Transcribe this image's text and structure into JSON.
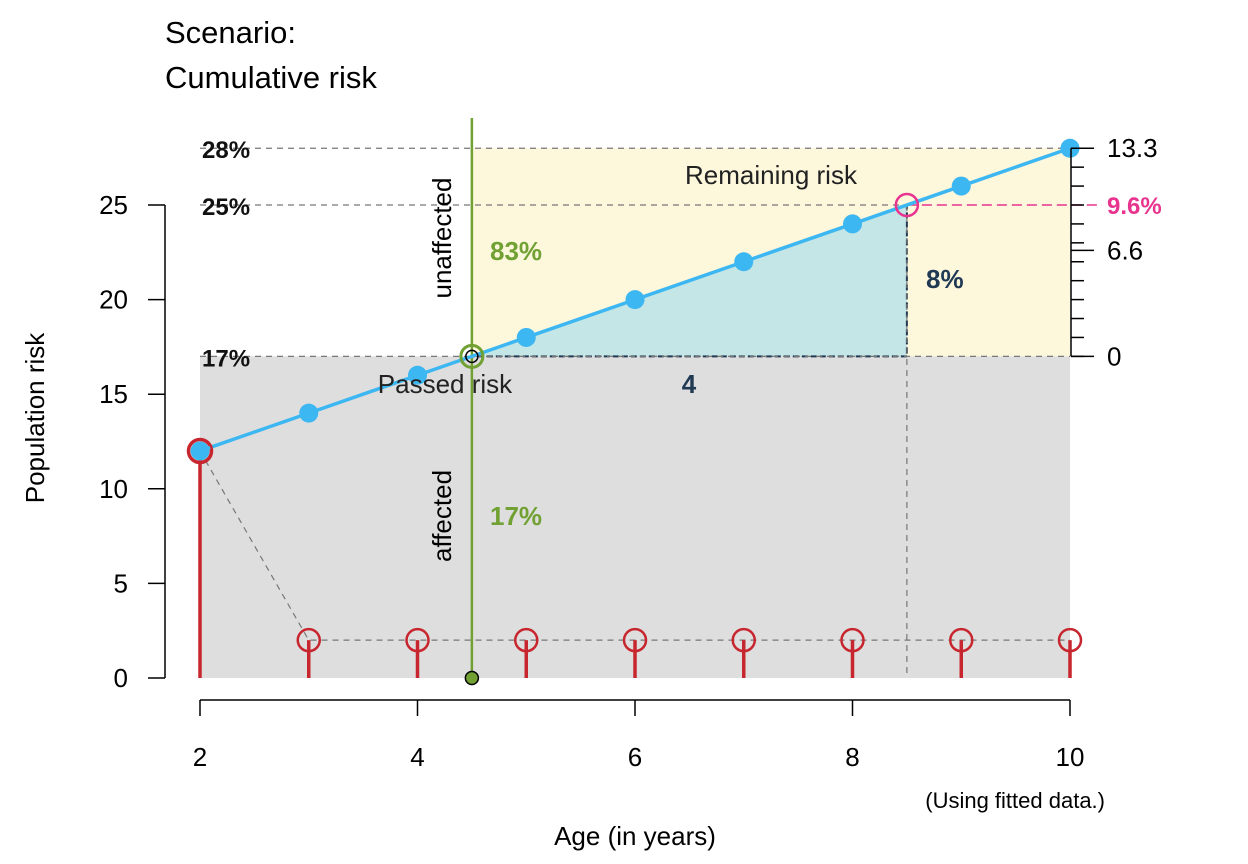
{
  "title_lines": [
    "Scenario:",
    "Cumulative risk"
  ],
  "chart_data": {
    "type": "line",
    "xlabel": "Age (in years)",
    "ylabel": "Population risk",
    "xlim": [
      2,
      10
    ],
    "ylim": [
      0,
      25
    ],
    "x_ticks": [
      2,
      4,
      6,
      8,
      10
    ],
    "y_ticks": [
      0,
      5,
      10,
      15,
      20,
      25
    ],
    "note": "(Using fitted data.)",
    "series": [
      {
        "x": [
          2,
          3,
          4,
          5,
          6,
          7,
          8,
          9,
          10
        ],
        "values": [
          12,
          14,
          16,
          18,
          20,
          22,
          24,
          26,
          28
        ]
      }
    ],
    "annual_risk": [
      12,
      2,
      2,
      2,
      2,
      2,
      2,
      2,
      2
    ],
    "current_age": 4.5,
    "current_risk": 17,
    "target_age": 8.5,
    "target_risk": 25,
    "max_risk": 28,
    "left_pct_labels": [
      {
        "value": 28,
        "label": "28%"
      },
      {
        "value": 25,
        "label": "25%"
      },
      {
        "value": 17,
        "label": "17%"
      }
    ],
    "right_axis": {
      "tick_labels": [
        {
          "value": 17,
          "label": "0"
        },
        {
          "value": 22.6,
          "label": "6.6"
        },
        {
          "value": 28,
          "label": "13.3"
        }
      ],
      "minor_ticks": [
        17,
        18,
        19,
        20,
        21,
        22,
        23,
        24,
        25,
        26,
        27,
        28
      ],
      "highlight": {
        "value": 25,
        "label": "9.6%"
      }
    },
    "annotations": {
      "remaining_risk": "Remaining risk",
      "passed_risk": "Passed risk",
      "unaffected": "unaffected",
      "affected": "affected",
      "unaffected_pct": "83%",
      "affected_pct": "17%",
      "delta_years": "4",
      "delta_risk": "8%"
    },
    "colors": {
      "line": "#3db7f2",
      "point": "#3db7f2",
      "annual": "#c8262f",
      "green": "#71a033",
      "pink": "#e8338f",
      "passed_fill": "#dedede",
      "remaining_fill": "#fdf7dc",
      "triangle_fill": "#c4e6e7",
      "navy": "#213a54"
    }
  }
}
